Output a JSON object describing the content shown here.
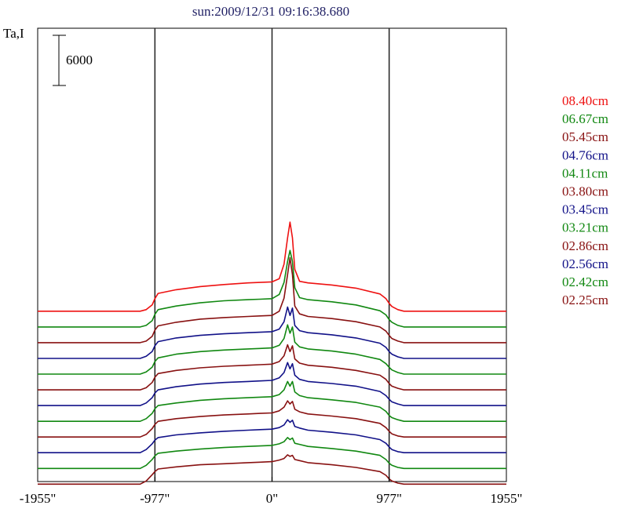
{
  "chart_data": {
    "type": "line",
    "title": "sun:2009/12/31 09:16:38.680",
    "ylabel": "Ta,I",
    "scale_bar": {
      "label": "6000",
      "value": 6000
    },
    "x": [
      -1955,
      -1700,
      -1400,
      -1100,
      -1050,
      -1000,
      -977,
      -950,
      -800,
      -600,
      -400,
      -200,
      -100,
      0,
      60,
      100,
      130,
      150,
      170,
      190,
      230,
      300,
      500,
      700,
      900,
      950,
      977,
      1000,
      1050,
      1100,
      1400,
      1700,
      1955
    ],
    "xlim": [
      -1955,
      1955
    ],
    "x_ticks": [
      {
        "value": -1955,
        "label": "-1955\""
      },
      {
        "value": -977,
        "label": "-977\""
      },
      {
        "value": 0,
        "label": "0\""
      },
      {
        "value": 977,
        "label": "977\""
      },
      {
        "value": 1955,
        "label": "1955\""
      }
    ],
    "vlines": [
      -977,
      0,
      977
    ],
    "ylim": [
      -2500,
      84000
    ],
    "series": [
      {
        "name": "08.40cm",
        "color": "#ee1111",
        "offset": 30000,
        "values": [
          0,
          0,
          0,
          0,
          300,
          1200,
          2400,
          3400,
          4100,
          4700,
          5100,
          5400,
          5500,
          5600,
          6200,
          9000,
          14000,
          17000,
          14000,
          8000,
          5700,
          5400,
          5000,
          4400,
          3300,
          2400,
          1500,
          900,
          300,
          0,
          0,
          0,
          0
        ]
      },
      {
        "name": "06.67cm",
        "color": "#118811",
        "offset": 27000,
        "values": [
          0,
          0,
          0,
          0,
          300,
          1200,
          2400,
          3300,
          4000,
          4600,
          5000,
          5200,
          5300,
          5400,
          6200,
          8500,
          12500,
          14600,
          12500,
          7500,
          5600,
          5200,
          4800,
          4200,
          3100,
          2300,
          1400,
          900,
          300,
          0,
          0,
          0,
          0
        ]
      },
      {
        "name": "05.45cm",
        "color": "#881111",
        "offset": 24000,
        "values": [
          0,
          0,
          0,
          0,
          300,
          1200,
          2400,
          3200,
          3900,
          4500,
          4800,
          5000,
          5100,
          5200,
          6000,
          8500,
          13000,
          16200,
          13000,
          7000,
          5500,
          5000,
          4600,
          4000,
          3000,
          2200,
          1400,
          800,
          300,
          0,
          0,
          0,
          0
        ]
      },
      {
        "name": "04.76cm",
        "color": "#111188",
        "offset": 21000,
        "values": [
          0,
          0,
          0,
          0,
          400,
          1300,
          2400,
          3200,
          3900,
          4400,
          4700,
          4900,
          5000,
          5100,
          5600,
          7000,
          9800,
          8200,
          9600,
          6300,
          5300,
          4900,
          4500,
          3900,
          2900,
          2100,
          1300,
          800,
          300,
          0,
          0,
          0,
          0
        ]
      },
      {
        "name": "04.11cm",
        "color": "#118811",
        "offset": 18000,
        "values": [
          0,
          0,
          0,
          0,
          400,
          1300,
          2400,
          3100,
          3800,
          4300,
          4600,
          4800,
          4900,
          5000,
          5500,
          6800,
          9400,
          7800,
          9000,
          6100,
          5200,
          4800,
          4400,
          3800,
          2800,
          2000,
          1300,
          800,
          300,
          0,
          0,
          0,
          0
        ]
      },
      {
        "name": "03.80cm",
        "color": "#881111",
        "offset": 15000,
        "values": [
          0,
          0,
          0,
          0,
          400,
          1400,
          2400,
          3100,
          3700,
          4200,
          4500,
          4700,
          4800,
          4900,
          5400,
          6500,
          8600,
          7300,
          8400,
          5900,
          5100,
          4700,
          4300,
          3700,
          2800,
          2000,
          1200,
          700,
          300,
          0,
          0,
          0,
          0
        ]
      },
      {
        "name": "03.45cm",
        "color": "#111188",
        "offset": 12000,
        "values": [
          0,
          0,
          0,
          0,
          500,
          1500,
          2400,
          3000,
          3600,
          4100,
          4400,
          4600,
          4700,
          4800,
          5300,
          6300,
          8200,
          7000,
          8000,
          5800,
          5000,
          4600,
          4200,
          3700,
          2700,
          1900,
          1200,
          700,
          300,
          0,
          0,
          0,
          0
        ]
      },
      {
        "name": "03.21cm",
        "color": "#118811",
        "offset": 9000,
        "values": [
          0,
          0,
          0,
          0,
          500,
          1500,
          2400,
          3000,
          3500,
          4000,
          4300,
          4500,
          4600,
          4700,
          5100,
          6000,
          7600,
          6700,
          7600,
          5600,
          4900,
          4500,
          4100,
          3600,
          2700,
          1900,
          1100,
          700,
          300,
          0,
          0,
          0,
          0
        ]
      },
      {
        "name": "02.86cm",
        "color": "#881111",
        "offset": 6000,
        "values": [
          0,
          0,
          0,
          0,
          500,
          1600,
          2400,
          3000,
          3500,
          3900,
          4200,
          4400,
          4500,
          4600,
          5000,
          5700,
          6900,
          6300,
          6800,
          5300,
          4800,
          4400,
          4000,
          3500,
          2600,
          1800,
          1100,
          600,
          200,
          0,
          0,
          0,
          0
        ]
      },
      {
        "name": "02.56cm",
        "color": "#111188",
        "offset": 3000,
        "values": [
          0,
          0,
          0,
          0,
          600,
          1700,
          2400,
          2900,
          3400,
          3800,
          4100,
          4300,
          4400,
          4500,
          4800,
          5300,
          6300,
          5800,
          6200,
          5000,
          4700,
          4300,
          3900,
          3400,
          2500,
          1800,
          1100,
          600,
          200,
          0,
          0,
          0,
          0
        ]
      },
      {
        "name": "02.42cm",
        "color": "#118811",
        "offset": 0,
        "values": [
          0,
          0,
          0,
          0,
          600,
          1700,
          2400,
          2900,
          3300,
          3700,
          4000,
          4200,
          4300,
          4400,
          4700,
          5100,
          5900,
          5500,
          5800,
          4800,
          4600,
          4200,
          3800,
          3300,
          2500,
          1700,
          1000,
          600,
          200,
          0,
          0,
          0,
          0
        ]
      },
      {
        "name": "02.25cm",
        "color": "#881111",
        "offset": -3000,
        "values": [
          0,
          0,
          0,
          0,
          600,
          1800,
          2400,
          2900,
          3300,
          3700,
          3900,
          4100,
          4200,
          4300,
          4600,
          4900,
          5600,
          5300,
          5500,
          4700,
          4500,
          4100,
          3700,
          3200,
          2400,
          1700,
          1000,
          600,
          200,
          0,
          0,
          0,
          0
        ]
      }
    ]
  }
}
